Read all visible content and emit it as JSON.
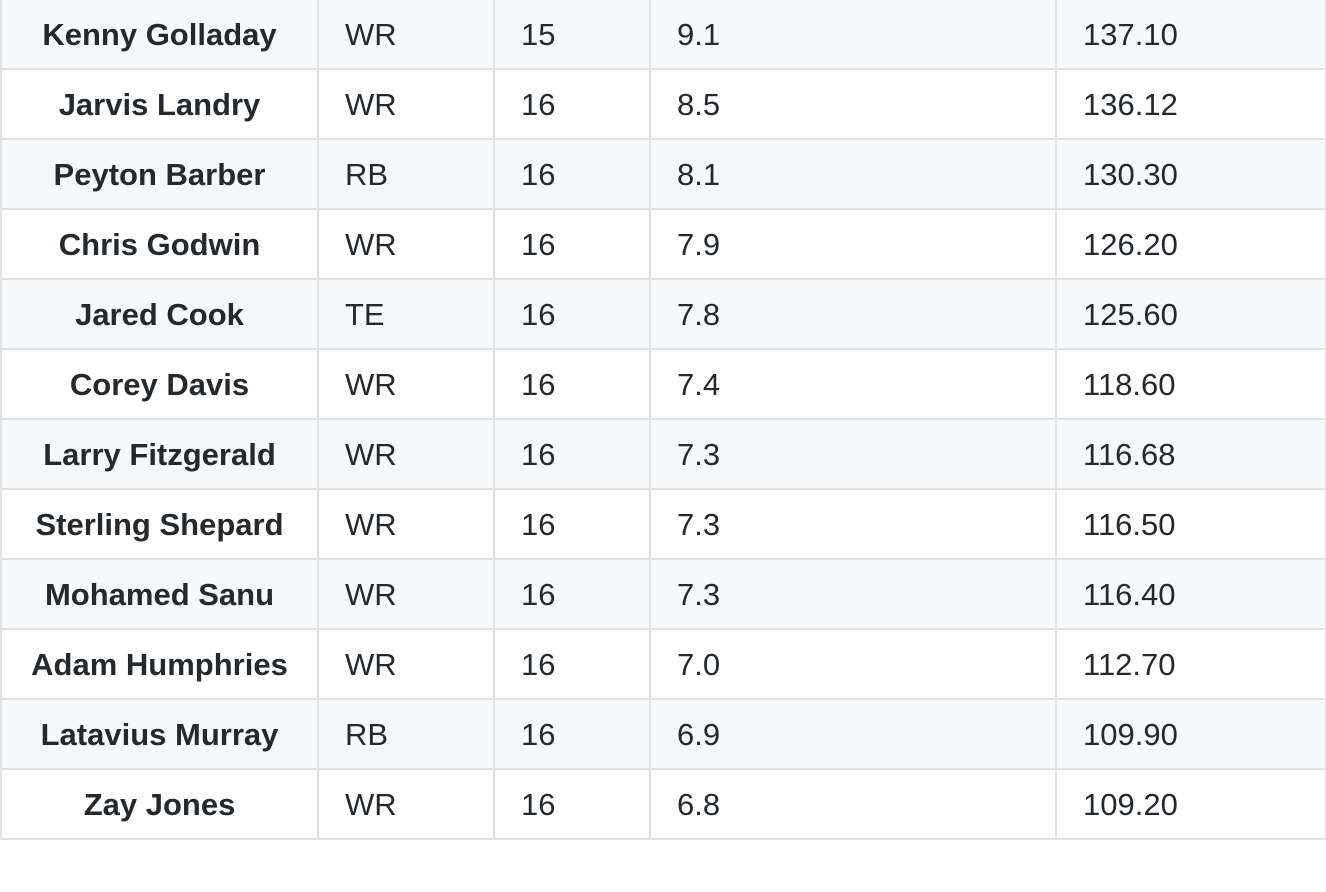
{
  "rows": [
    {
      "player": "Kenny Golladay",
      "position": "WR",
      "games": "15",
      "ppg": "9.1",
      "total": "137.10"
    },
    {
      "player": "Jarvis Landry",
      "position": "WR",
      "games": "16",
      "ppg": "8.5",
      "total": "136.12"
    },
    {
      "player": "Peyton Barber",
      "position": "RB",
      "games": "16",
      "ppg": "8.1",
      "total": "130.30"
    },
    {
      "player": "Chris Godwin",
      "position": "WR",
      "games": "16",
      "ppg": "7.9",
      "total": "126.20"
    },
    {
      "player": "Jared Cook",
      "position": "TE",
      "games": "16",
      "ppg": "7.8",
      "total": "125.60"
    },
    {
      "player": "Corey Davis",
      "position": "WR",
      "games": "16",
      "ppg": "7.4",
      "total": "118.60"
    },
    {
      "player": "Larry Fitzgerald",
      "position": "WR",
      "games": "16",
      "ppg": "7.3",
      "total": "116.68"
    },
    {
      "player": "Sterling Shepard",
      "position": "WR",
      "games": "16",
      "ppg": "7.3",
      "total": "116.50"
    },
    {
      "player": "Mohamed Sanu",
      "position": "WR",
      "games": "16",
      "ppg": "7.3",
      "total": "116.40"
    },
    {
      "player": "Adam Humphries",
      "position": "WR",
      "games": "16",
      "ppg": "7.0",
      "total": "112.70"
    },
    {
      "player": "Latavius Murray",
      "position": "RB",
      "games": "16",
      "ppg": "6.9",
      "total": "109.90"
    },
    {
      "player": "Zay Jones",
      "position": "WR",
      "games": "16",
      "ppg": "6.8",
      "total": "109.20"
    }
  ]
}
